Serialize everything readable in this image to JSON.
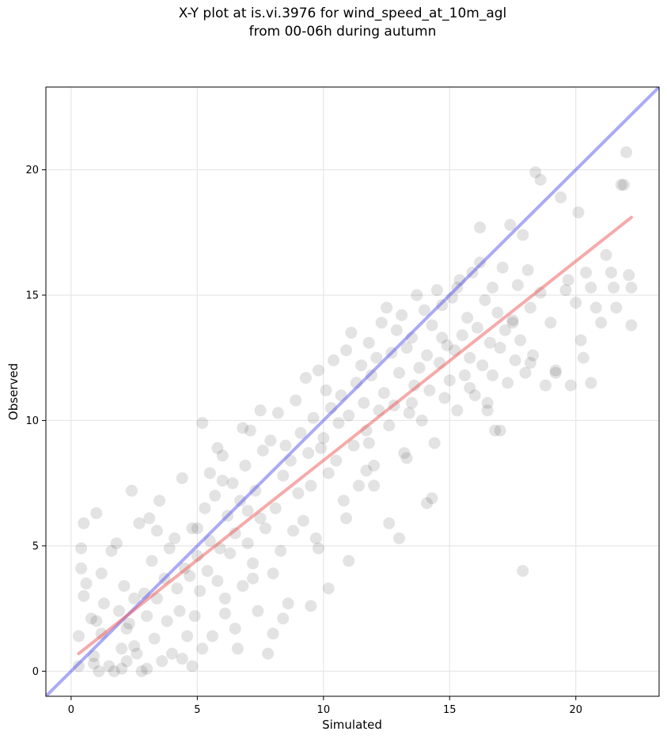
{
  "chart_data": {
    "type": "scatter",
    "title_line1": "X-Y plot at is.vi.3976 for wind_speed_at_10m_agl",
    "title_line2": "from 00-06h during autumn",
    "xlabel": "Simulated",
    "ylabel": "Observed",
    "xlim": [
      -1.0,
      23.3
    ],
    "ylim": [
      -1.0,
      23.3
    ],
    "xticks": [
      0,
      5,
      10,
      15,
      20
    ],
    "yticks": [
      0,
      5,
      10,
      15,
      20
    ],
    "grid": true,
    "colors": {
      "points": "#000000",
      "identity_line": "#5555ee",
      "fit_line": "#ee5555"
    },
    "identity_line": {
      "x": [
        -1.0,
        23.3
      ],
      "y": [
        -1.0,
        23.3
      ]
    },
    "fit_line": {
      "x": [
        0.3,
        22.2
      ],
      "y": [
        0.7,
        18.1
      ]
    },
    "series": [
      {
        "values_x": [
          0.3,
          0.3,
          0.4,
          0.5,
          0.6,
          0.8,
          0.9,
          1.0,
          1.1,
          1.2,
          1.3,
          1.5,
          1.6,
          1.7,
          1.8,
          1.9,
          2.0,
          2.1,
          2.2,
          2.3,
          2.4,
          2.5,
          2.6,
          2.7,
          2.8,
          2.9,
          3.0,
          3.1,
          3.2,
          3.3,
          3.4,
          3.5,
          3.6,
          3.7,
          3.8,
          3.9,
          4.0,
          4.1,
          4.2,
          4.3,
          4.4,
          4.5,
          4.6,
          4.7,
          4.8,
          4.9,
          5.0,
          5.1,
          5.2,
          5.3,
          5.4,
          5.5,
          5.6,
          5.7,
          5.8,
          5.9,
          6.0,
          6.1,
          6.2,
          6.3,
          6.4,
          6.5,
          6.6,
          6.7,
          6.8,
          6.9,
          7.0,
          7.1,
          7.2,
          7.3,
          7.4,
          7.5,
          7.6,
          7.7,
          7.8,
          7.9,
          8.0,
          8.1,
          8.2,
          8.3,
          8.4,
          8.5,
          8.6,
          8.7,
          8.8,
          8.9,
          9.0,
          9.1,
          9.2,
          9.3,
          9.4,
          9.5,
          9.6,
          9.7,
          9.8,
          9.9,
          10.0,
          10.1,
          10.2,
          10.3,
          10.4,
          10.5,
          10.6,
          10.7,
          10.8,
          10.9,
          11.0,
          11.1,
          11.2,
          11.3,
          11.4,
          11.5,
          11.6,
          11.7,
          11.8,
          11.9,
          12.0,
          12.1,
          12.2,
          12.3,
          12.4,
          12.5,
          12.6,
          12.7,
          12.8,
          12.9,
          13.0,
          13.1,
          13.2,
          13.3,
          13.4,
          13.5,
          13.6,
          13.7,
          13.8,
          13.9,
          14.0,
          14.1,
          14.2,
          14.3,
          14.4,
          14.5,
          14.6,
          14.7,
          14.8,
          14.9,
          15.0,
          15.1,
          15.2,
          15.3,
          15.4,
          15.5,
          15.6,
          15.7,
          15.8,
          15.9,
          16.0,
          16.1,
          16.2,
          16.3,
          16.4,
          16.5,
          16.6,
          16.7,
          16.8,
          16.9,
          17.0,
          17.1,
          17.2,
          17.3,
          17.4,
          17.5,
          17.6,
          17.7,
          17.8,
          17.9,
          18.0,
          18.1,
          18.2,
          18.3,
          18.4,
          18.6,
          18.8,
          19.0,
          19.2,
          19.4,
          19.6,
          19.8,
          20.0,
          20.2,
          20.4,
          20.6,
          20.8,
          21.0,
          21.2,
          21.5,
          21.8,
          22.0,
          22.2,
          0.4,
          1.0,
          2.5,
          3.0,
          5.2,
          6.8,
          7.5,
          8.0,
          9.5,
          10.2,
          13.0,
          14.1,
          16.5,
          17.0,
          17.9,
          18.6,
          21.9,
          22.2,
          0.5,
          0.9,
          1.2,
          2.2,
          3.4,
          4.8,
          5.5,
          6.1,
          6.5,
          7.0,
          7.2,
          8.4,
          9.8,
          10.9,
          11.8,
          12.6,
          13.3,
          14.7,
          15.3,
          16.2,
          19.2,
          20.1,
          20.6,
          21.6,
          2.0,
          4.4,
          5.0,
          5.8,
          6.0,
          11.0,
          11.7,
          12.0,
          13.5,
          14.3,
          15.8,
          16.7,
          17.5,
          18.2,
          19.7,
          20.3,
          21.4,
          22.1
        ],
        "values_y": [
          1.4,
          0.2,
          4.1,
          5.9,
          3.5,
          2.1,
          0.3,
          6.3,
          0.0,
          1.5,
          2.7,
          0.2,
          4.8,
          0.0,
          5.1,
          2.4,
          0.9,
          3.4,
          0.4,
          1.9,
          7.2,
          2.9,
          0.7,
          5.9,
          0.0,
          3.1,
          2.2,
          6.1,
          4.4,
          1.3,
          2.9,
          6.8,
          0.4,
          3.7,
          2.0,
          4.9,
          0.7,
          5.3,
          3.3,
          2.4,
          7.7,
          4.1,
          1.4,
          3.8,
          5.7,
          2.2,
          4.6,
          3.2,
          0.9,
          6.5,
          4.0,
          5.2,
          1.4,
          7.0,
          3.6,
          4.9,
          8.6,
          2.3,
          6.2,
          4.7,
          7.5,
          5.5,
          0.9,
          6.8,
          3.4,
          8.2,
          5.1,
          9.6,
          4.3,
          7.2,
          2.4,
          6.1,
          8.8,
          5.7,
          0.7,
          9.2,
          3.9,
          6.5,
          10.3,
          4.8,
          7.8,
          9.0,
          2.7,
          8.4,
          5.6,
          10.8,
          7.1,
          9.5,
          6.0,
          11.7,
          8.7,
          7.4,
          10.1,
          5.3,
          12.0,
          8.9,
          9.3,
          11.2,
          7.9,
          10.5,
          12.4,
          8.4,
          9.9,
          11.0,
          6.8,
          12.8,
          10.2,
          13.5,
          9.0,
          11.5,
          7.4,
          12.2,
          10.7,
          9.6,
          13.1,
          11.8,
          8.2,
          12.5,
          10.4,
          13.9,
          11.1,
          14.5,
          9.8,
          12.7,
          10.6,
          13.6,
          11.9,
          14.2,
          8.7,
          12.9,
          10.3,
          13.3,
          11.4,
          15.0,
          12.1,
          10.0,
          14.4,
          12.6,
          11.2,
          13.8,
          9.1,
          15.2,
          12.3,
          14.6,
          10.9,
          13.0,
          11.6,
          14.9,
          12.8,
          10.4,
          15.6,
          13.4,
          11.8,
          14.1,
          12.5,
          15.9,
          11.0,
          13.7,
          16.3,
          12.2,
          14.8,
          10.7,
          13.1,
          15.3,
          9.6,
          14.3,
          12.9,
          16.1,
          13.6,
          11.5,
          17.8,
          14.0,
          12.4,
          15.4,
          13.2,
          17.4,
          11.9,
          16.0,
          14.5,
          12.6,
          19.9,
          15.1,
          11.4,
          13.9,
          12.0,
          18.9,
          15.2,
          11.4,
          14.7,
          13.2,
          15.9,
          11.5,
          14.5,
          13.9,
          16.6,
          15.3,
          19.4,
          20.7,
          13.8,
          4.9,
          2.0,
          1.0,
          0.1,
          9.9,
          9.7,
          10.4,
          1.5,
          2.6,
          3.3,
          5.3,
          6.7,
          10.4,
          9.6,
          4.0,
          19.6,
          19.4,
          15.3,
          3.0,
          0.6,
          3.9,
          1.7,
          5.6,
          0.2,
          7.9,
          2.9,
          1.7,
          6.4,
          3.7,
          2.1,
          4.9,
          6.1,
          9.1,
          5.9,
          8.5,
          13.3,
          15.3,
          17.7,
          11.9,
          18.3,
          15.3,
          14.5,
          0.1,
          0.5,
          5.7,
          8.9,
          7.6,
          4.4,
          8.0,
          7.4,
          10.7,
          6.9,
          11.3,
          11.8,
          13.9,
          12.3,
          15.6,
          12.5,
          15.9,
          15.8
        ]
      }
    ]
  }
}
